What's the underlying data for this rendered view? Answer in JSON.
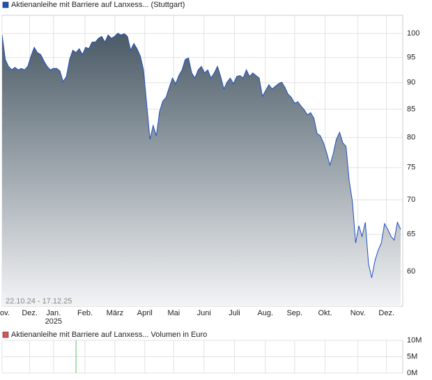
{
  "charts": [
    {
      "type": "area",
      "legend": "Aktienanleihe mit Barriere auf Lanxess... (Stuttgart)",
      "date_range": "22.10.24 - 17.12.25",
      "color": "#1f4fbf",
      "log_scale": true,
      "grid": true,
      "values": [
        99.7,
        94.6,
        93.2,
        92.5,
        93.0,
        92.5,
        92.8,
        92.5,
        93.2,
        95.3,
        97.1,
        96.0,
        95.6,
        94.3,
        93.2,
        92.5,
        92.8,
        92.8,
        92.3,
        90.2,
        91.2,
        94.6,
        96.5,
        96.0,
        96.8,
        95.6,
        97.1,
        96.8,
        98.2,
        98.2,
        99.0,
        99.4,
        98.2,
        99.7,
        99.0,
        99.4,
        100.1,
        99.7,
        100,
        99.4,
        96.5,
        97.9,
        96.8,
        95.3,
        92.5,
        85.9,
        79.7,
        82.1,
        80.3,
        84.6,
        86.5,
        87.2,
        89.1,
        90.9,
        89.8,
        91.4,
        92.5,
        94.6,
        94.9,
        91.9,
        90.9,
        92.5,
        93.2,
        91.9,
        92.5,
        90.9,
        91.9,
        93.2,
        91.2,
        88.8,
        90.1,
        90.9,
        89.8,
        91.2,
        91.4,
        90.9,
        92.5,
        91.2,
        91.9,
        91.4,
        90.9,
        87.4,
        88.5,
        89.6,
        88.8,
        89.3,
        89.8,
        90.1,
        89.1,
        87.8,
        87.2,
        86.1,
        86.4,
        85.6,
        84.9,
        84.0,
        84.4,
        83.4,
        80.7,
        80.3,
        79.1,
        77.4,
        75.4,
        77.2,
        79.7,
        80.9,
        79.1,
        78.5,
        72.9,
        69.7,
        63.8,
        66.2,
        64.7,
        66.7,
        61.0,
        59.2,
        61.4,
        62.8,
        63.8,
        66.5,
        65.7,
        64.7,
        64.2,
        66.7,
        65.7
      ],
      "xlim": [
        0,
        124
      ],
      "xticks": [
        {
          "value": 0,
          "label": "Nov."
        },
        {
          "value": 8.6,
          "label": "Dez."
        },
        {
          "value": 16,
          "label": "Jan. 2025"
        },
        {
          "value": 25.8,
          "label": "Feb."
        },
        {
          "value": 35.1,
          "label": "März"
        },
        {
          "value": 44.4,
          "label": "April"
        },
        {
          "value": 53.4,
          "label": "Mai"
        },
        {
          "value": 62.8,
          "label": "Juni"
        },
        {
          "value": 72.3,
          "label": "Juli"
        },
        {
          "value": 81.9,
          "label": "Aug."
        },
        {
          "value": 91,
          "label": "Sep."
        },
        {
          "value": 100.5,
          "label": "Okt."
        },
        {
          "value": 110.7,
          "label": "Nov."
        },
        {
          "value": 119.6,
          "label": "Dez."
        }
      ],
      "ylim": [
        55.7,
        104
      ],
      "yticks": [
        60,
        65,
        70,
        75,
        80,
        85,
        90,
        95,
        100
      ]
    },
    {
      "type": "bar",
      "legend": "Aktienanleihe mit Barriere auf Lanxess... Volumen in Euro",
      "color": "#5fc35f",
      "legend_color": "#d9534f",
      "x": [
        23
      ],
      "values": [
        10000000
      ],
      "xlim": [
        0,
        124
      ],
      "ylim": [
        0,
        10000000
      ],
      "yticks": [
        {
          "value": 0,
          "label": "0M"
        },
        {
          "value": 5000000,
          "label": "5M"
        },
        {
          "value": 10000000,
          "label": "10M"
        }
      ],
      "grid": true
    }
  ]
}
